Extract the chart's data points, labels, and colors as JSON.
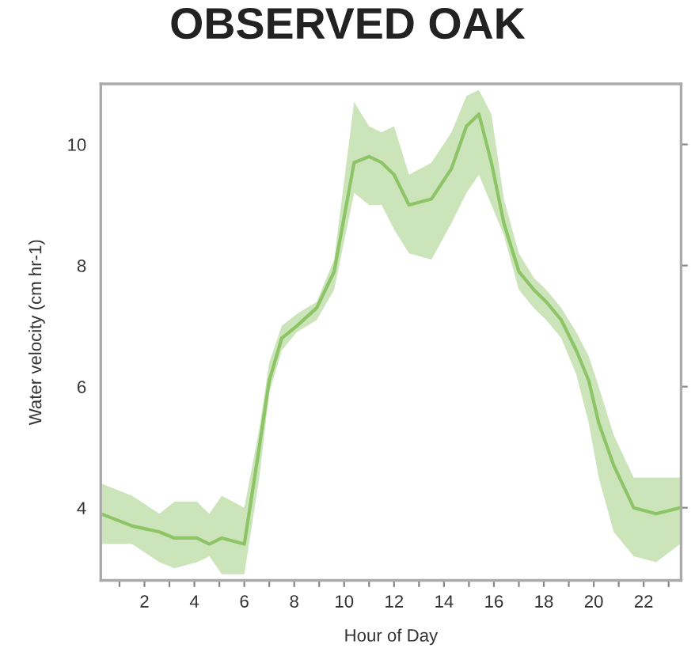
{
  "chart_data": {
    "type": "line",
    "title": "OBSERVED OAK",
    "xlabel": "Hour of Day",
    "ylabel": "Water velocity (cm hr-1)",
    "x": [
      0.26,
      1.5,
      2.6,
      3.2,
      4.1,
      4.6,
      5.1,
      6.0,
      6.6,
      7.0,
      7.5,
      8.1,
      8.9,
      9.6,
      10.4,
      11.0,
      11.5,
      12.0,
      12.6,
      13.5,
      14.3,
      14.9,
      15.4,
      15.9,
      16.4,
      17.0,
      17.6,
      18.1,
      18.7,
      19.3,
      19.8,
      20.2,
      20.8,
      21.6,
      22.5,
      23.46
    ],
    "series": [
      {
        "color": "#8cc466",
        "values": [
          3.9,
          3.7,
          3.6,
          3.5,
          3.5,
          3.4,
          3.5,
          3.4,
          5.0,
          6.1,
          6.8,
          7.0,
          7.3,
          7.9,
          9.7,
          9.8,
          9.7,
          9.5,
          9.0,
          9.1,
          9.6,
          10.3,
          10.5,
          9.7,
          8.7,
          7.9,
          7.6,
          7.4,
          7.1,
          6.6,
          6.1,
          5.4,
          4.7,
          4.0,
          3.9,
          4.0
        ],
        "lower": [
          3.4,
          3.4,
          3.1,
          3.0,
          3.1,
          3.2,
          2.9,
          2.9,
          4.5,
          5.9,
          6.6,
          6.9,
          7.1,
          7.6,
          9.2,
          9.0,
          9.0,
          8.6,
          8.2,
          8.1,
          8.7,
          9.2,
          9.5,
          9.0,
          8.5,
          7.6,
          7.3,
          7.1,
          6.8,
          6.2,
          5.4,
          4.5,
          3.6,
          3.2,
          3.1,
          3.4
        ],
        "upper": [
          4.4,
          4.2,
          3.9,
          4.1,
          4.1,
          3.9,
          4.2,
          4.0,
          5.3,
          6.4,
          7.0,
          7.2,
          7.4,
          8.1,
          10.7,
          10.3,
          10.2,
          10.3,
          9.5,
          9.7,
          10.2,
          10.8,
          10.9,
          10.5,
          9.1,
          8.2,
          7.8,
          7.6,
          7.3,
          6.9,
          6.5,
          6.0,
          5.2,
          4.5,
          4.5,
          4.5
        ]
      }
    ],
    "xlim": [
      0.25,
      23.5
    ],
    "xticks": [
      {
        "value": 1,
        "label": null
      },
      2,
      {
        "value": 3,
        "label": null
      },
      4,
      {
        "value": 5,
        "label": null
      },
      6,
      {
        "value": 7,
        "label": null
      },
      8,
      {
        "value": 9,
        "label": null
      },
      10,
      {
        "value": 11,
        "label": null
      },
      12,
      {
        "value": 13,
        "label": null
      },
      14,
      {
        "value": 15,
        "label": null
      },
      16,
      {
        "value": 17,
        "label": null
      },
      18,
      {
        "value": 19,
        "label": null
      },
      20,
      {
        "value": 21,
        "label": null
      },
      22,
      {
        "value": 23,
        "label": null
      }
    ],
    "ylim": [
      2.8,
      11
    ],
    "yticks": [
      4,
      6,
      8,
      10
    ],
    "grid": false,
    "legend": false,
    "marker": "none",
    "line_style": "solid"
  }
}
